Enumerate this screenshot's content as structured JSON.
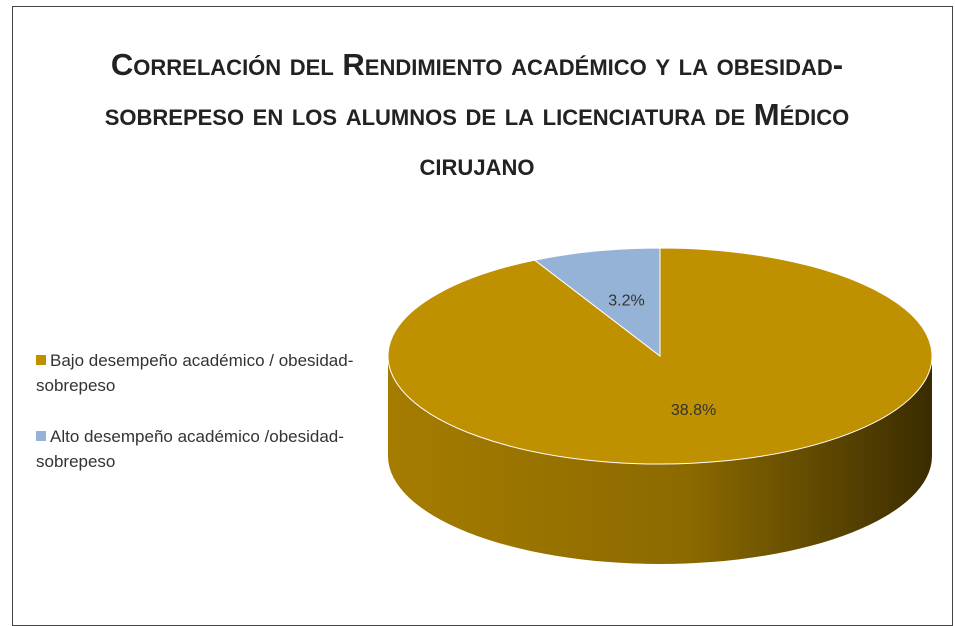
{
  "chart_data": {
    "type": "pie",
    "title": "Correlación del Rendimiento académico y la obesidad-sobrepeso en los alumnos de la licenciatura de Médico cirujano",
    "categories": [
      "Bajo desempeño académico / obesidad-sobrepeso",
      "Alto desempeño académico /obesidad-sobrepeso"
    ],
    "values": [
      38.8,
      3.2
    ],
    "value_labels": [
      "38.8%",
      "3.2%"
    ],
    "colors": [
      "#bf9000",
      "#95b3d7"
    ],
    "legend": "left"
  }
}
